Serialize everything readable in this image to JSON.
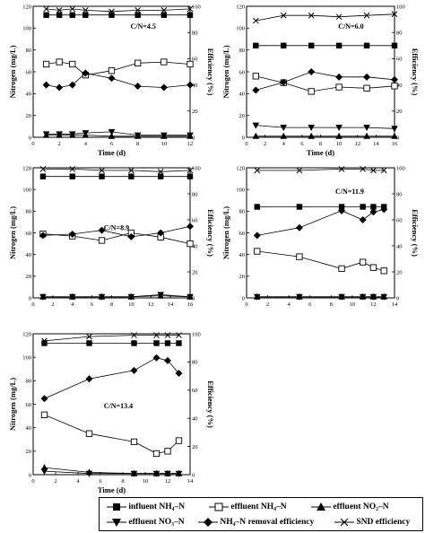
{
  "chart_data": [
    {
      "type": "line",
      "annotation": "C/N=4.5",
      "xlabel": "Time (d)",
      "ylabel": "Nitrogen (mg/L)",
      "y2label": "Efficiency (%)",
      "xlim": [
        0,
        12
      ],
      "xticks": [
        0,
        2,
        4,
        6,
        8,
        10,
        12
      ],
      "ylim": [
        0,
        120
      ],
      "yticks": [
        0,
        20,
        40,
        60,
        80,
        100,
        120
      ],
      "y2lim": [
        0,
        100
      ],
      "y2ticks": [
        0,
        20,
        40,
        60,
        80,
        100
      ],
      "series": [
        {
          "key": "influent_nh4",
          "axis": "left",
          "points": [
            [
              1,
              112
            ],
            [
              2,
              112
            ],
            [
              3,
              112
            ],
            [
              4,
              112
            ],
            [
              6,
              112
            ],
            [
              8,
              112
            ],
            [
              10,
              112
            ],
            [
              12,
              112
            ]
          ]
        },
        {
          "key": "effluent_nh4",
          "axis": "left",
          "points": [
            [
              1,
              67
            ],
            [
              2,
              69
            ],
            [
              3,
              67
            ],
            [
              4,
              57
            ],
            [
              6,
              61
            ],
            [
              8,
              68
            ],
            [
              10,
              69
            ],
            [
              12,
              67
            ]
          ]
        },
        {
          "key": "effluent_no2",
          "axis": "left",
          "points": [
            [
              1,
              2
            ],
            [
              2,
              2
            ],
            [
              3,
              2
            ],
            [
              4,
              2
            ],
            [
              6,
              1
            ],
            [
              8,
              1
            ],
            [
              10,
              1
            ],
            [
              12,
              1
            ]
          ]
        },
        {
          "key": "effluent_no3",
          "axis": "left",
          "points": [
            [
              1,
              3
            ],
            [
              2,
              3
            ],
            [
              3,
              3
            ],
            [
              4,
              4
            ],
            [
              6,
              5
            ],
            [
              8,
              2
            ],
            [
              10,
              2
            ],
            [
              12,
              2
            ]
          ]
        },
        {
          "key": "removal_eff",
          "axis": "right",
          "points": [
            [
              1,
              40
            ],
            [
              2,
              38
            ],
            [
              3,
              40
            ],
            [
              4,
              49
            ],
            [
              6,
              45
            ],
            [
              8,
              39
            ],
            [
              10,
              38
            ],
            [
              12,
              40
            ]
          ]
        },
        {
          "key": "snd_eff",
          "axis": "right",
          "points": [
            [
              1,
              98
            ],
            [
              2,
              97
            ],
            [
              3,
              98
            ],
            [
              4,
              97
            ],
            [
              6,
              96
            ],
            [
              8,
              97
            ],
            [
              10,
              97
            ],
            [
              12,
              98
            ]
          ]
        }
      ]
    },
    {
      "type": "line",
      "annotation": "C/N=6.0",
      "xlabel": "Time (d)",
      "ylabel": "Nitrogen (mg/L)",
      "y2label": "Efficiency (%)",
      "xlim": [
        0,
        16
      ],
      "xticks": [
        0,
        2,
        4,
        6,
        8,
        10,
        12,
        14,
        16
      ],
      "ylim": [
        0,
        120
      ],
      "yticks": [
        0,
        20,
        40,
        60,
        80,
        100,
        120
      ],
      "y2lim": [
        0,
        100
      ],
      "y2ticks": [
        0,
        20,
        40,
        60,
        80,
        100
      ],
      "series": [
        {
          "key": "influent_nh4",
          "axis": "left",
          "points": [
            [
              1,
              84
            ],
            [
              4,
              84
            ],
            [
              7,
              84
            ],
            [
              10,
              84
            ],
            [
              13,
              84
            ],
            [
              16,
              84
            ]
          ]
        },
        {
          "key": "effluent_nh4",
          "axis": "left",
          "points": [
            [
              1,
              56
            ],
            [
              4,
              50
            ],
            [
              7,
              42
            ],
            [
              10,
              46
            ],
            [
              13,
              45
            ],
            [
              16,
              47
            ]
          ]
        },
        {
          "key": "effluent_no2",
          "axis": "left",
          "points": [
            [
              1,
              1
            ],
            [
              4,
              1
            ],
            [
              7,
              1
            ],
            [
              10,
              1
            ],
            [
              13,
              1
            ],
            [
              16,
              1
            ]
          ]
        },
        {
          "key": "effluent_no3",
          "axis": "left",
          "points": [
            [
              1,
              11
            ],
            [
              4,
              9
            ],
            [
              7,
              9
            ],
            [
              10,
              9
            ],
            [
              13,
              9
            ],
            [
              16,
              8
            ]
          ]
        },
        {
          "key": "removal_eff",
          "axis": "right",
          "points": [
            [
              1,
              36
            ],
            [
              4,
              42
            ],
            [
              7,
              50
            ],
            [
              10,
              46
            ],
            [
              13,
              46
            ],
            [
              16,
              44
            ]
          ]
        },
        {
          "key": "snd_eff",
          "axis": "right",
          "points": [
            [
              1,
              89
            ],
            [
              4,
              93
            ],
            [
              7,
              93
            ],
            [
              10,
              92
            ],
            [
              13,
              93
            ],
            [
              16,
              94
            ]
          ]
        }
      ]
    },
    {
      "type": "line",
      "annotation": "C/N=8.9",
      "xlabel": "",
      "ylabel": "Nitrogen (mg/L)",
      "y2label": "Efficiency (%)",
      "xlim": [
        0,
        16
      ],
      "xticks": [
        0,
        2,
        4,
        6,
        8,
        10,
        12,
        14,
        16
      ],
      "ylim": [
        0,
        120
      ],
      "yticks": [
        0,
        20,
        40,
        60,
        80,
        100,
        120
      ],
      "y2lim": [
        0,
        100
      ],
      "y2ticks": [
        0,
        20,
        40,
        60,
        80,
        100
      ],
      "series": [
        {
          "key": "influent_nh4",
          "axis": "left",
          "points": [
            [
              1,
              112
            ],
            [
              4,
              112
            ],
            [
              7,
              112
            ],
            [
              10,
              112
            ],
            [
              13,
              112
            ],
            [
              16,
              112
            ]
          ]
        },
        {
          "key": "effluent_nh4",
          "axis": "left",
          "points": [
            [
              1,
              59
            ],
            [
              4,
              57
            ],
            [
              7,
              53
            ],
            [
              10,
              60
            ],
            [
              13,
              56
            ],
            [
              16,
              50
            ]
          ]
        },
        {
          "key": "effluent_no2",
          "axis": "left",
          "points": [
            [
              1,
              1
            ],
            [
              4,
              1
            ],
            [
              7,
              1
            ],
            [
              10,
              1
            ],
            [
              13,
              2
            ],
            [
              16,
              1
            ]
          ]
        },
        {
          "key": "effluent_no3",
          "axis": "left",
          "points": [
            [
              1,
              1
            ],
            [
              4,
              1
            ],
            [
              7,
              1
            ],
            [
              10,
              1
            ],
            [
              13,
              3
            ],
            [
              16,
              1
            ]
          ]
        },
        {
          "key": "removal_eff",
          "axis": "right",
          "points": [
            [
              1,
              48
            ],
            [
              4,
              49
            ],
            [
              7,
              52
            ],
            [
              10,
              47
            ],
            [
              13,
              50
            ],
            [
              16,
              55
            ]
          ]
        },
        {
          "key": "snd_eff",
          "axis": "right",
          "points": [
            [
              1,
              99
            ],
            [
              4,
              99
            ],
            [
              7,
              98
            ],
            [
              10,
              98
            ],
            [
              13,
              97
            ],
            [
              16,
              98
            ]
          ]
        }
      ]
    },
    {
      "type": "line",
      "annotation": "C/N=11.9",
      "xlabel": "",
      "ylabel": "Nitrogen (mg/L)",
      "y2label": "Efficiency (%)",
      "xlim": [
        0,
        14
      ],
      "xticks": [
        0,
        2,
        4,
        6,
        8,
        10,
        12,
        14
      ],
      "ylim": [
        0,
        120
      ],
      "yticks": [
        0,
        20,
        40,
        60,
        80,
        100,
        120
      ],
      "y2lim": [
        0,
        100
      ],
      "y2ticks": [
        0,
        20,
        40,
        60,
        80,
        100
      ],
      "series": [
        {
          "key": "influent_nh4",
          "axis": "left",
          "points": [
            [
              1,
              84
            ],
            [
              5,
              84
            ],
            [
              9,
              84
            ],
            [
              11,
              84
            ],
            [
              12,
              84
            ],
            [
              13,
              84
            ]
          ]
        },
        {
          "key": "effluent_nh4",
          "axis": "left",
          "points": [
            [
              1,
              43
            ],
            [
              5,
              38
            ],
            [
              9,
              27
            ],
            [
              11,
              33
            ],
            [
              12,
              28
            ],
            [
              13,
              25
            ]
          ]
        },
        {
          "key": "effluent_no2",
          "axis": "left",
          "points": [
            [
              1,
              1
            ],
            [
              5,
              1
            ],
            [
              9,
              1
            ],
            [
              11,
              1
            ],
            [
              12,
              1
            ],
            [
              13,
              1
            ]
          ]
        },
        {
          "key": "effluent_no3",
          "axis": "left",
          "points": [
            [
              1,
              1
            ],
            [
              5,
              1
            ],
            [
              9,
              1
            ],
            [
              11,
              1
            ],
            [
              12,
              1
            ],
            [
              13,
              1
            ]
          ]
        },
        {
          "key": "removal_eff",
          "axis": "right",
          "points": [
            [
              1,
              48
            ],
            [
              5,
              54
            ],
            [
              9,
              67
            ],
            [
              11,
              60
            ],
            [
              12,
              66
            ],
            [
              13,
              68
            ]
          ]
        },
        {
          "key": "snd_eff",
          "axis": "right",
          "points": [
            [
              1,
              98
            ],
            [
              5,
              98
            ],
            [
              9,
              99
            ],
            [
              11,
              99
            ],
            [
              12,
              98
            ],
            [
              13,
              98
            ]
          ]
        }
      ]
    },
    {
      "type": "line",
      "annotation": "C/N=13.4",
      "xlabel": "Time (d)",
      "ylabel": "Nitrogen (mg/L)",
      "y2label": "Efficiency (%)",
      "xlim": [
        0,
        14
      ],
      "xticks": [
        0,
        2,
        4,
        6,
        8,
        10,
        12,
        14
      ],
      "ylim": [
        0,
        120
      ],
      "yticks": [
        0,
        20,
        40,
        60,
        80,
        100,
        120
      ],
      "y2lim": [
        0,
        100
      ],
      "y2ticks": [
        0,
        20,
        40,
        60,
        80,
        100
      ],
      "series": [
        {
          "key": "influent_nh4",
          "axis": "left",
          "points": [
            [
              1,
              112
            ],
            [
              5,
              112
            ],
            [
              9,
              112
            ],
            [
              11,
              112
            ],
            [
              12,
              112
            ],
            [
              13,
              112
            ]
          ]
        },
        {
          "key": "effluent_nh4",
          "axis": "left",
          "points": [
            [
              1,
              51
            ],
            [
              5,
              35
            ],
            [
              9,
              28
            ],
            [
              11,
              18
            ],
            [
              12,
              20
            ],
            [
              13,
              29
            ]
          ]
        },
        {
          "key": "effluent_no2",
          "axis": "left",
          "points": [
            [
              1,
              6
            ],
            [
              5,
              2
            ],
            [
              9,
              1
            ],
            [
              11,
              1
            ],
            [
              12,
              1
            ],
            [
              13,
              1
            ]
          ]
        },
        {
          "key": "effluent_no3",
          "axis": "left",
          "points": [
            [
              1,
              3
            ],
            [
              5,
              1
            ],
            [
              9,
              1
            ],
            [
              11,
              1
            ],
            [
              12,
              1
            ],
            [
              13,
              1
            ]
          ]
        },
        {
          "key": "removal_eff",
          "axis": "right",
          "points": [
            [
              1,
              54
            ],
            [
              5,
              68
            ],
            [
              9,
              74
            ],
            [
              11,
              83
            ],
            [
              12,
              81
            ],
            [
              13,
              72
            ]
          ]
        },
        {
          "key": "snd_eff",
          "axis": "right",
          "points": [
            [
              1,
              95
            ],
            [
              5,
              98
            ],
            [
              9,
              99
            ],
            [
              11,
              99
            ],
            [
              12,
              99
            ],
            [
              13,
              99
            ]
          ]
        }
      ]
    }
  ],
  "legend": [
    {
      "key": "influent_nh4",
      "marker": "square-filled",
      "label": "influent NH₄–N"
    },
    {
      "key": "effluent_nh4",
      "marker": "square-open",
      "label": "effluent NH₄–N"
    },
    {
      "key": "effluent_no2",
      "marker": "triangle-up-filled",
      "label": "effluent NO₂–N"
    },
    {
      "key": "effluent_no3",
      "marker": "triangle-down-filled",
      "label": "effluent NO₃–N"
    },
    {
      "key": "removal_eff",
      "marker": "diamond-filled",
      "label": "NH₄–N removal efficiency"
    },
    {
      "key": "snd_eff",
      "marker": "cross",
      "label": "SND efficiency"
    }
  ],
  "colors": {
    "ink": "#000000",
    "background": "#ffffff"
  }
}
